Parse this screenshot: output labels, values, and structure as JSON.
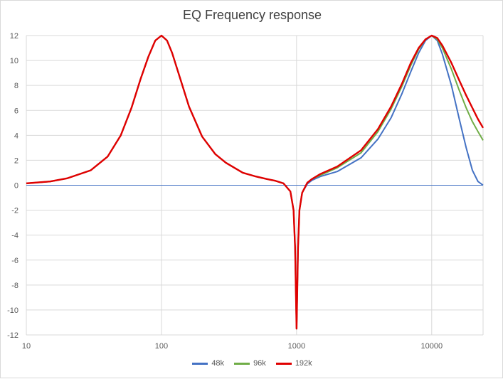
{
  "chart_data": {
    "type": "line",
    "title": "EQ Frequency response",
    "x_scale": "log",
    "xlim": [
      10,
      24000
    ],
    "ylim": [
      -12,
      12
    ],
    "grid": true,
    "legend_position": "bottom",
    "x_ticks": [
      10,
      100,
      1000,
      10000
    ],
    "y_ticks": [
      -12,
      -10,
      -8,
      -6,
      -4,
      -2,
      0,
      2,
      4,
      6,
      8,
      10,
      12
    ],
    "zero_line_color": "#4472C4",
    "series": [
      {
        "name": "48k",
        "color": "#4472C4",
        "points": [
          [
            10,
            0.15
          ],
          [
            15,
            0.3
          ],
          [
            20,
            0.55
          ],
          [
            30,
            1.2
          ],
          [
            40,
            2.3
          ],
          [
            50,
            4.0
          ],
          [
            60,
            6.2
          ],
          [
            70,
            8.5
          ],
          [
            80,
            10.3
          ],
          [
            90,
            11.6
          ],
          [
            100,
            12.0
          ],
          [
            110,
            11.6
          ],
          [
            120,
            10.6
          ],
          [
            140,
            8.3
          ],
          [
            160,
            6.3
          ],
          [
            200,
            3.9
          ],
          [
            250,
            2.5
          ],
          [
            300,
            1.8
          ],
          [
            400,
            1.0
          ],
          [
            500,
            0.7
          ],
          [
            600,
            0.5
          ],
          [
            700,
            0.35
          ],
          [
            800,
            0.15
          ],
          [
            900,
            -0.5
          ],
          [
            950,
            -2.0
          ],
          [
            975,
            -5.0
          ],
          [
            990,
            -9.0
          ],
          [
            1000,
            -11.5
          ],
          [
            1010,
            -9.0
          ],
          [
            1025,
            -5.0
          ],
          [
            1050,
            -2.0
          ],
          [
            1100,
            -0.6
          ],
          [
            1200,
            0.1
          ],
          [
            1300,
            0.4
          ],
          [
            1500,
            0.7
          ],
          [
            2000,
            1.1
          ],
          [
            3000,
            2.2
          ],
          [
            4000,
            3.7
          ],
          [
            5000,
            5.4
          ],
          [
            6000,
            7.3
          ],
          [
            7000,
            9.1
          ],
          [
            8000,
            10.6
          ],
          [
            9000,
            11.6
          ],
          [
            10000,
            12.0
          ],
          [
            11000,
            11.6
          ],
          [
            12000,
            10.5
          ],
          [
            14000,
            8.0
          ],
          [
            16000,
            5.3
          ],
          [
            18000,
            3.0
          ],
          [
            20000,
            1.2
          ],
          [
            22000,
            0.3
          ],
          [
            24000,
            0.0
          ]
        ]
      },
      {
        "name": "96k",
        "color": "#70AD47",
        "points": [
          [
            10,
            0.15
          ],
          [
            15,
            0.3
          ],
          [
            20,
            0.55
          ],
          [
            30,
            1.2
          ],
          [
            40,
            2.3
          ],
          [
            50,
            4.0
          ],
          [
            60,
            6.2
          ],
          [
            70,
            8.5
          ],
          [
            80,
            10.3
          ],
          [
            90,
            11.6
          ],
          [
            100,
            12.0
          ],
          [
            110,
            11.6
          ],
          [
            120,
            10.6
          ],
          [
            140,
            8.3
          ],
          [
            160,
            6.3
          ],
          [
            200,
            3.9
          ],
          [
            250,
            2.5
          ],
          [
            300,
            1.8
          ],
          [
            400,
            1.0
          ],
          [
            500,
            0.7
          ],
          [
            600,
            0.5
          ],
          [
            700,
            0.35
          ],
          [
            800,
            0.15
          ],
          [
            900,
            -0.5
          ],
          [
            950,
            -2.0
          ],
          [
            975,
            -5.0
          ],
          [
            990,
            -9.0
          ],
          [
            1000,
            -11.5
          ],
          [
            1010,
            -9.0
          ],
          [
            1025,
            -5.0
          ],
          [
            1050,
            -2.0
          ],
          [
            1100,
            -0.6
          ],
          [
            1200,
            0.2
          ],
          [
            1300,
            0.5
          ],
          [
            1500,
            0.8
          ],
          [
            2000,
            1.4
          ],
          [
            3000,
            2.6
          ],
          [
            4000,
            4.3
          ],
          [
            5000,
            6.1
          ],
          [
            6000,
            7.9
          ],
          [
            7000,
            9.6
          ],
          [
            8000,
            10.9
          ],
          [
            9000,
            11.7
          ],
          [
            10000,
            12.0
          ],
          [
            11000,
            11.7
          ],
          [
            12000,
            11.0
          ],
          [
            14000,
            9.3
          ],
          [
            16000,
            7.6
          ],
          [
            18000,
            6.2
          ],
          [
            20000,
            5.1
          ],
          [
            22000,
            4.3
          ],
          [
            24000,
            3.6
          ]
        ]
      },
      {
        "name": "192k",
        "color": "#E00000",
        "points": [
          [
            10,
            0.15
          ],
          [
            15,
            0.3
          ],
          [
            20,
            0.55
          ],
          [
            30,
            1.2
          ],
          [
            40,
            2.3
          ],
          [
            50,
            4.0
          ],
          [
            60,
            6.2
          ],
          [
            70,
            8.5
          ],
          [
            80,
            10.3
          ],
          [
            90,
            11.6
          ],
          [
            100,
            12.0
          ],
          [
            110,
            11.6
          ],
          [
            120,
            10.6
          ],
          [
            140,
            8.3
          ],
          [
            160,
            6.3
          ],
          [
            200,
            3.9
          ],
          [
            250,
            2.5
          ],
          [
            300,
            1.8
          ],
          [
            400,
            1.0
          ],
          [
            500,
            0.7
          ],
          [
            600,
            0.5
          ],
          [
            700,
            0.35
          ],
          [
            800,
            0.15
          ],
          [
            900,
            -0.5
          ],
          [
            950,
            -2.0
          ],
          [
            975,
            -5.0
          ],
          [
            990,
            -9.0
          ],
          [
            1000,
            -11.5
          ],
          [
            1010,
            -9.0
          ],
          [
            1025,
            -5.0
          ],
          [
            1050,
            -2.0
          ],
          [
            1100,
            -0.6
          ],
          [
            1200,
            0.2
          ],
          [
            1300,
            0.5
          ],
          [
            1500,
            0.9
          ],
          [
            2000,
            1.5
          ],
          [
            3000,
            2.8
          ],
          [
            4000,
            4.5
          ],
          [
            5000,
            6.3
          ],
          [
            6000,
            8.1
          ],
          [
            7000,
            9.8
          ],
          [
            8000,
            11.0
          ],
          [
            9000,
            11.7
          ],
          [
            10000,
            12.0
          ],
          [
            11000,
            11.8
          ],
          [
            12000,
            11.2
          ],
          [
            14000,
            9.8
          ],
          [
            16000,
            8.4
          ],
          [
            18000,
            7.2
          ],
          [
            20000,
            6.2
          ],
          [
            22000,
            5.3
          ],
          [
            24000,
            4.6
          ]
        ]
      }
    ]
  }
}
